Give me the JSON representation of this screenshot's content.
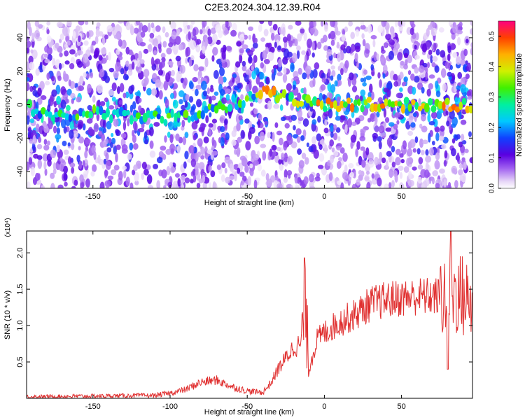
{
  "title": "C2E3.2024.304.12.39.R04",
  "colors": {
    "line": "#e03030",
    "axis": "#000000",
    "background": "#ffffff"
  },
  "chart_data": [
    {
      "type": "heatmap",
      "xlabel": "Height of straight line (km)",
      "ylabel": "Frequency (Hz)",
      "xlim": [
        -193,
        96
      ],
      "ylim": [
        -50,
        50
      ],
      "xticks": [
        -150,
        -100,
        -50,
        0,
        50
      ],
      "yticks": [
        -40,
        -20,
        0,
        20,
        40
      ],
      "colorbar": {
        "label": "Normalized spectral amplitude",
        "range": [
          0,
          0.55
        ],
        "ticks": [
          "0.0",
          "0.1",
          "0.2",
          "0.3",
          "0.4",
          "0.5"
        ],
        "colormap": "rainbow"
      },
      "ridge": {
        "description_points_x": [
          -190,
          -150,
          -100,
          -70,
          -50,
          -40,
          -30,
          -10,
          0,
          50,
          95
        ],
        "description_points_y": [
          -6,
          -5,
          -8,
          -3,
          4,
          8,
          5,
          1,
          0,
          0,
          0
        ]
      }
    },
    {
      "type": "line",
      "xlabel": "Height of straight line (km)",
      "ylabel": "SNR (10 * v/v)",
      "yexponent": "(x10⁴)",
      "xlim": [
        -193,
        96
      ],
      "ylim": [
        0,
        2.3
      ],
      "xticks": [
        -150,
        -100,
        -50,
        0,
        50
      ],
      "yticks": [
        "0.5",
        "1.0",
        "1.5",
        "2.0"
      ],
      "series_anchor_x": [
        -193,
        -150,
        -110,
        -100,
        -90,
        -80,
        -70,
        -60,
        -50,
        -40,
        -35,
        -30,
        -25,
        -20,
        -15,
        -12,
        -10,
        -5,
        0,
        10,
        20,
        30,
        40,
        50,
        60,
        70,
        78,
        82,
        85,
        90,
        96
      ],
      "series_anchor_y": [
        0.02,
        0.03,
        0.04,
        0.07,
        0.12,
        0.22,
        0.25,
        0.16,
        0.1,
        0.08,
        0.2,
        0.4,
        0.55,
        0.7,
        0.75,
        1.2,
        0.4,
        0.8,
        0.9,
        1.05,
        1.15,
        1.3,
        1.35,
        1.38,
        1.4,
        1.4,
        1.4,
        1.5,
        1.45,
        1.4,
        1.3
      ]
    }
  ]
}
